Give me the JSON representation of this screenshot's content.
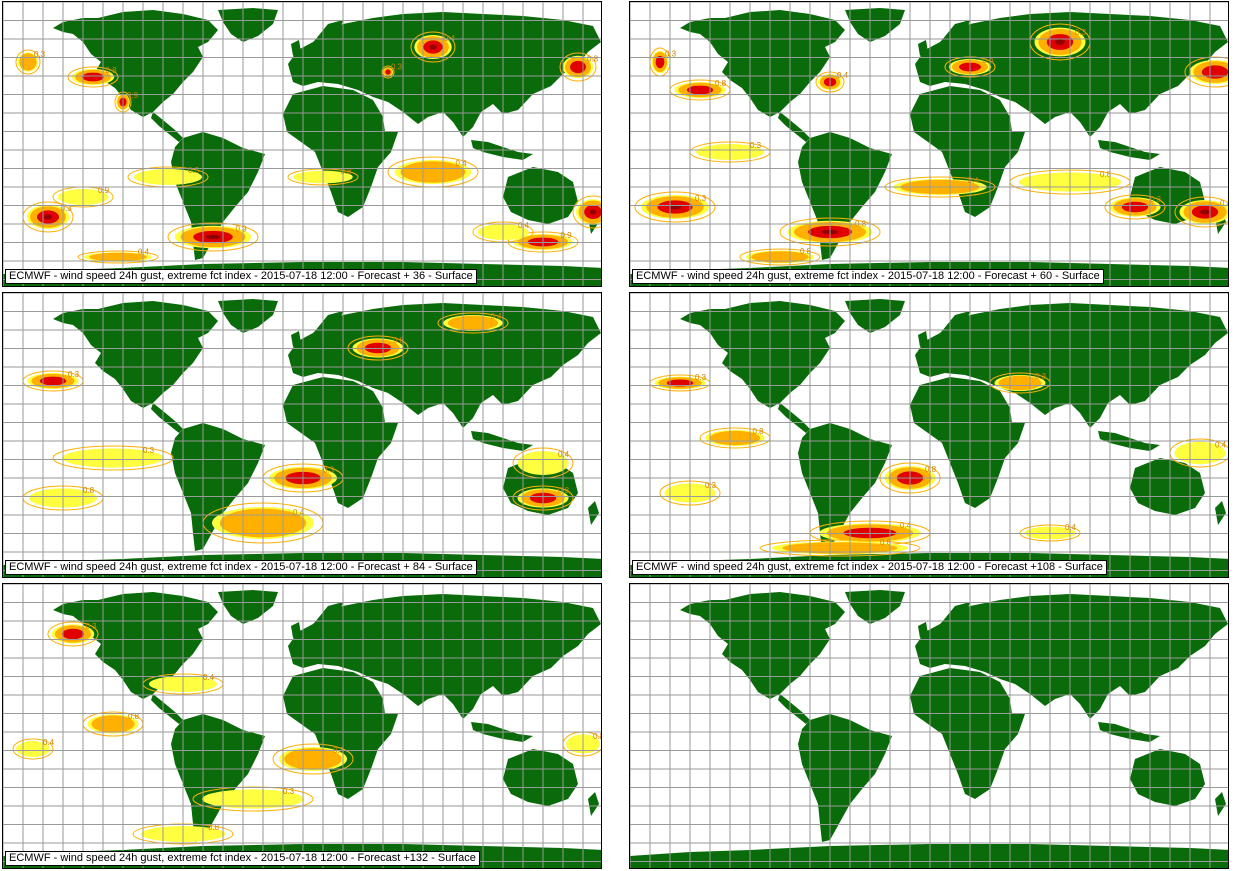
{
  "panels": [
    {
      "caption": "ECMWF - wind speed 24h gust, extreme fct index - 2015-07-18 12:00 - Forecast + 36 - Surface",
      "labels": [
        "0.3",
        "0.8",
        "0.9",
        "0.4"
      ]
    },
    {
      "caption": "ECMWF - wind speed 24h gust, extreme fct index - 2015-07-18 12:00 - Forecast + 60 - Surface",
      "labels": [
        "0.3",
        "0.8",
        "0.4"
      ]
    },
    {
      "caption": "ECMWF - wind speed 24h gust, extreme fct index - 2015-07-18 12:00 - Forecast + 84 - Surface",
      "labels": [
        "0.3",
        "0.8",
        "0.4"
      ]
    },
    {
      "caption": "ECMWF - wind speed 24h gust, extreme fct index - 2015-07-18 12:00 - Forecast +108 - Surface",
      "labels": [
        "0.3",
        "0.8",
        "0.4"
      ]
    },
    {
      "caption": "ECMWF - wind speed 24h gust, extreme fct index - 2015-07-18 12:00 - Forecast +132 - Surface",
      "labels": [
        "0.3",
        "0.8",
        "0.4"
      ]
    },
    {
      "caption": "",
      "labels": []
    }
  ],
  "colors": {
    "land": "#0a6b0a",
    "grid": "#9a9a9a",
    "contour_light": "#ffff40",
    "contour_mid": "#ffb000",
    "contour_high": "#e00000",
    "contour_max": "#900000"
  }
}
